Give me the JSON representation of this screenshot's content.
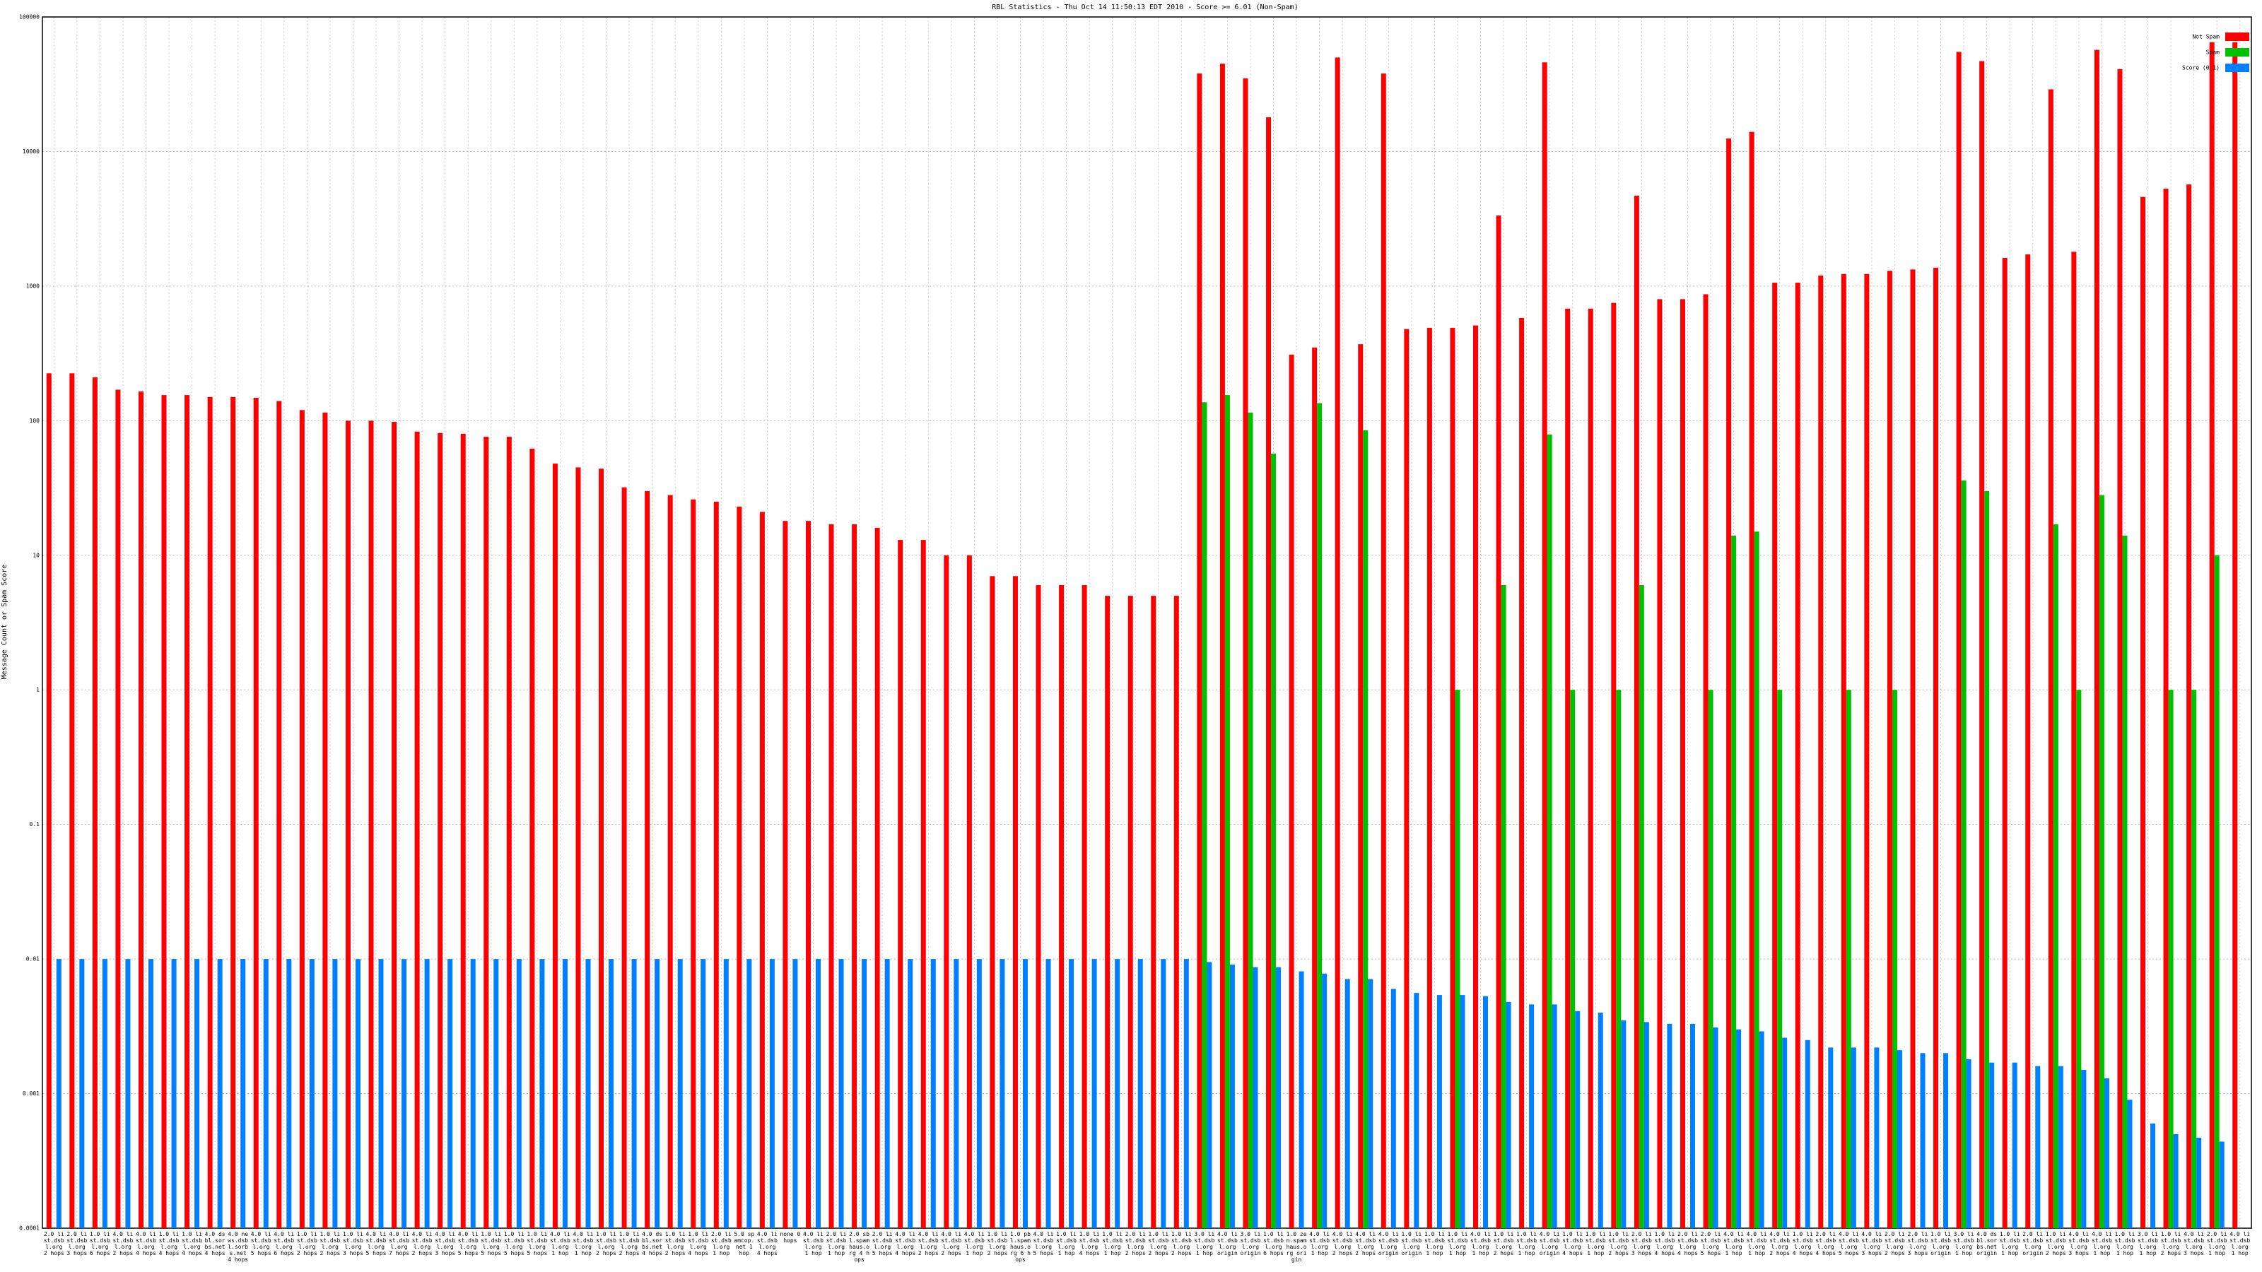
{
  "chart_data": {
    "type": "bar",
    "title": "RBL Statistics - Thu Oct 14 11:50:13 EDT 2010 - Score >= 6.01 (Non-Spam)",
    "y_label": "Message Count or Spam Score",
    "log_y": true,
    "grid": true,
    "legend": "top-right",
    "ylim": [
      0.0001,
      100000
    ],
    "yticks": [
      0.0001,
      0.001,
      0.01,
      0.1,
      1,
      10,
      100,
      1000,
      10000,
      100000
    ],
    "categories": [
      "2.0 list.dsbl.org 2 hops",
      "2.0 list.dsbl.org 3 hops",
      "1.0 list.dsbl.org 6 hops",
      "4.0 list.dsbl.org 2 hops",
      "4.0 list.dsbl.org 4 hops",
      "1.0 list.dsbl.org 4 hops",
      "1.0 list.dsbl.org 4 hops",
      "4.0 dsbl.sorbs.net 4 hops",
      "4.0 news.dsbl.sorbs.net 4 hops",
      "4.0 list.dsbl.org 5 hops",
      "4.0 list.dsbl.org 6 hops",
      "1.0 list.dsbl.org 2 hops",
      "1.0 list.dsbl.org 2 hops",
      "1.0 list.dsbl.org 3 hops",
      "4.0 list.dsbl.org 5 hops",
      "4.0 list.dsbl.org 7 hops",
      "4.0 list.dsbl.org 2 hops",
      "4.0 list.dsbl.org 3 hops",
      "4.0 list.dsbl.org 5 hops",
      "1.0 list.dsbl.org 5 hops",
      "1.0 list.dsbl.org 5 hops",
      "1.0 list.dsbl.org 5 hops",
      "4.0 list.dsbl.org 1 hop",
      "4.0 list.dsbl.org 1 hop",
      "1.0 list.dsbl.org 2 hops",
      "1.0 list.dsbl.org 2 hops",
      "4.0 dsbl.sorbs.net 4 hops",
      "1.0 list.dsbl.org 2 hops",
      "1.0 list.dsbl.org 4 hops",
      "2.0 list.dsbl.org 1 hop",
      "5.0 spamcop.net 1 hop",
      "4.0 list.dsbl.org 4 hops",
      "none 0 hops",
      "4.0 list.dsbl.org 1 hop",
      "2.0 list.dsbl.org 1 hop",
      "2.0 sbl.spamhaus.org 4 hops",
      "2.0 list.dsbl.org 5 hops",
      "4.0 list.dsbl.org 4 hops",
      "4.0 list.dsbl.org 2 hops",
      "4.0 list.dsbl.org 2 hops",
      "4.0 list.dsbl.org 1 hop",
      "1.0 list.dsbl.org 2 hops",
      "1.0 pbl.spamhaus.org 6 hops",
      "4.0 list.dsbl.org 5 hops",
      "1.0 list.dsbl.org 1 hop",
      "1.0 list.dsbl.org 4 hops",
      "1.0 list.dsbl.org 1 hop",
      "2.0 list.dsbl.org 2 hops",
      "1.0 list.dsbl.org 2 hops",
      "1.0 list.dsbl.org 2 hops",
      "3.0 list.dsbl.org 1 hop",
      "4.0 list.dsbl.org origin",
      "3.0 list.dsbl.org origin",
      "1.0 list.dsbl.org 6 hops",
      "1.0 zen.spamhaus.org origin",
      "4.0 list.dsbl.org 1 hop",
      "4.0 list.dsbl.org 2 hops",
      "4.0 list.dsbl.org 2 hops",
      "4.0 list.dsbl.org origin",
      "1.0 list.dsbl.org origin",
      "1.0 list.dsbl.org 1 hop",
      "1.0 list.dsbl.org 1 hop",
      "4.0 list.dsbl.org 1 hop",
      "1.0 list.dsbl.org 2 hops",
      "1.0 list.dsbl.org 1 hop",
      "4.0 list.dsbl.org origin",
      "1.0 list.dsbl.org 4 hops",
      "1.0 list.dsbl.org 1 hop",
      "1.0 list.dsbl.org 2 hops",
      "2.0 list.dsbl.org 3 hops",
      "1.0 list.dsbl.org 4 hops",
      "2.0 list.dsbl.org 4 hops",
      "2.0 list.dsbl.org 5 hops",
      "4.0 list.dsbl.org 1 hop",
      "4.0 list.dsbl.org 1 hop",
      "4.0 list.dsbl.org 2 hops",
      "1.0 list.dsbl.org 4 hops",
      "2.0 list.dsbl.org 4 hops",
      "4.0 list.dsbl.org 5 hops",
      "4.0 list.dsbl.org 3 hops",
      "2.0 list.dsbl.org 2 hops",
      "2.0 list.dsbl.org 3 hops",
      "1.0 list.dsbl.org origin",
      "3.0 list.dsbl.org 1 hop",
      "4.0 dsbl.sorbs.net origin",
      "1.0 list.dsbl.org 1 hop",
      "2.0 list.dsbl.org origin",
      "1.0 list.dsbl.org 2 hops",
      "4.0 list.dsbl.org 3 hops",
      "4.0 list.dsbl.org 1 hop",
      "1.0 list.dsbl.org 1 hop",
      "3.0 list.dsbl.org 1 hop",
      "1.0 list.dsbl.org 2 hops",
      "4.0 list.dsbl.org 3 hops",
      "2.0 list.dsbl.org 1 hop",
      "4.0 list.dsbl.org 1 hop"
    ],
    "series": [
      {
        "name": "Not Spam",
        "color": "#ff0000",
        "values": [
          225,
          225,
          210,
          170,
          165,
          155,
          155,
          150,
          150,
          148,
          140,
          120,
          115,
          100,
          100,
          98,
          83,
          81,
          80,
          76,
          76,
          62,
          48,
          45,
          44,
          32,
          30,
          28,
          26,
          25,
          23,
          21,
          18,
          18,
          17,
          17,
          16,
          13,
          13,
          10,
          10,
          7,
          7,
          6,
          6,
          6,
          5,
          5,
          5,
          5,
          38000,
          45000,
          35000,
          18000,
          310,
          350,
          50000,
          370,
          38000,
          480,
          490,
          490,
          510,
          3350,
          580,
          46000,
          680,
          680,
          750,
          4700,
          800,
          800,
          870,
          12500,
          14000,
          1060,
          1060,
          1200,
          1230,
          1230,
          1300,
          1330,
          1370,
          55000,
          47000,
          1620,
          1720,
          29000,
          1800,
          57000,
          41000,
          4600,
          5300,
          5700,
          65000,
          65000
        ]
      },
      {
        "name": "Spam",
        "color": "#00c000",
        "values": [
          null,
          null,
          null,
          null,
          null,
          null,
          null,
          null,
          null,
          null,
          null,
          null,
          null,
          null,
          null,
          null,
          null,
          null,
          null,
          null,
          null,
          null,
          null,
          null,
          null,
          null,
          null,
          null,
          null,
          null,
          null,
          null,
          null,
          null,
          null,
          null,
          null,
          null,
          null,
          null,
          null,
          null,
          null,
          null,
          null,
          null,
          null,
          null,
          null,
          null,
          137,
          155,
          115,
          57,
          null,
          135,
          null,
          85,
          null,
          null,
          null,
          1,
          null,
          6,
          null,
          79,
          1,
          null,
          1,
          6,
          null,
          null,
          1,
          14,
          15,
          1,
          null,
          null,
          1,
          null,
          1,
          null,
          null,
          36,
          30,
          null,
          null,
          17,
          1,
          28,
          14,
          null,
          1,
          1,
          10,
          null
        ]
      },
      {
        "name": "Score (0.1)",
        "color": "#0080ff",
        "values": [
          0.01,
          0.01,
          0.01,
          0.01,
          0.01,
          0.01,
          0.01,
          0.01,
          0.01,
          0.01,
          0.01,
          0.01,
          0.01,
          0.01,
          0.01,
          0.01,
          0.01,
          0.01,
          0.01,
          0.01,
          0.01,
          0.01,
          0.01,
          0.01,
          0.01,
          0.01,
          0.01,
          0.01,
          0.01,
          0.01,
          0.01,
          0.01,
          0.01,
          0.01,
          0.01,
          0.01,
          0.01,
          0.01,
          0.01,
          0.01,
          0.01,
          0.01,
          0.01,
          0.01,
          0.01,
          0.01,
          0.01,
          0.01,
          0.01,
          0.01,
          0.0095,
          0.0091,
          0.0087,
          0.0087,
          0.0081,
          0.0078,
          0.0071,
          0.0071,
          0.006,
          0.0056,
          0.0054,
          0.0054,
          0.0053,
          0.0048,
          0.0046,
          0.0046,
          0.0041,
          0.004,
          0.0035,
          0.0034,
          0.0033,
          0.0033,
          0.0031,
          0.003,
          0.0029,
          0.0026,
          0.0025,
          0.0022,
          0.0022,
          0.0022,
          0.0021,
          0.002,
          0.002,
          0.0018,
          0.0017,
          0.0017,
          0.0016,
          0.0016,
          0.0015,
          0.0013,
          0.0009,
          0.0006,
          0.0005,
          0.00047,
          0.00044,
          null
        ]
      }
    ]
  }
}
